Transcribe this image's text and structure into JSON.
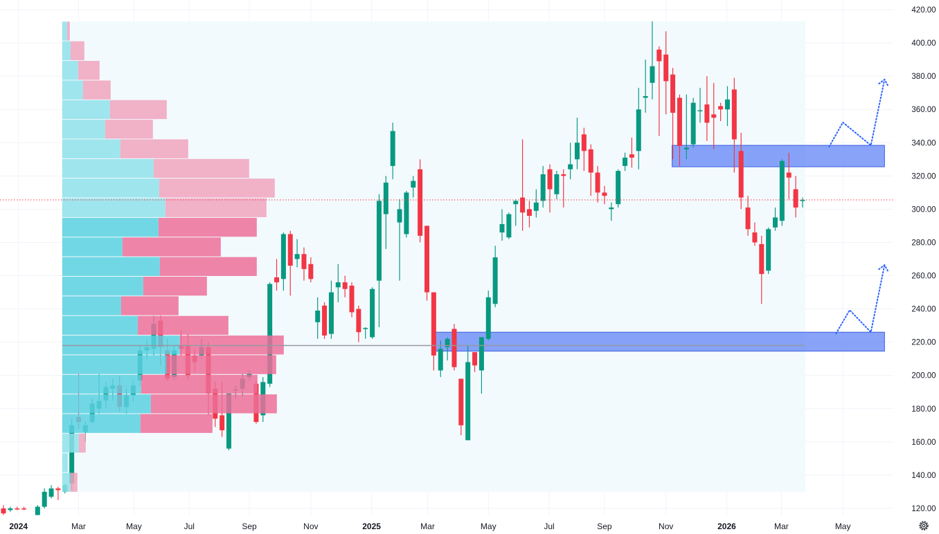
{
  "chart_data": {
    "type": "candlestick",
    "title": "",
    "interval": "weekly",
    "ylim": [
      120,
      420
    ],
    "y_ticks": [
      "420.00",
      "400.00",
      "380.00",
      "360.00",
      "340.00",
      "320.00",
      "300.00",
      "280.00",
      "260.00",
      "240.00",
      "220.00",
      "200.00",
      "180.00",
      "160.00",
      "140.00",
      "120.00"
    ],
    "x_ticks": [
      {
        "label": "2024",
        "week": 0.2,
        "year": true
      },
      {
        "label": "Mar",
        "week": 9.0
      },
      {
        "label": "May",
        "week": 17.1
      },
      {
        "label": "Jul",
        "week": 25.2
      },
      {
        "label": "Sep",
        "week": 34.0
      },
      {
        "label": "Nov",
        "week": 43.0
      },
      {
        "label": "2025",
        "week": 51.9,
        "year": true
      },
      {
        "label": "Mar",
        "week": 60.1
      },
      {
        "label": "May",
        "week": 69.0
      },
      {
        "label": "Jul",
        "week": 77.9
      },
      {
        "label": "Sep",
        "week": 86.0
      },
      {
        "label": "Nov",
        "week": 95.0
      },
      {
        "label": "2026",
        "week": 103.9,
        "year": true
      },
      {
        "label": "Mar",
        "week": 111.9
      },
      {
        "label": "May",
        "week": 120.9
      }
    ],
    "candle_fields": [
      "week",
      "open",
      "high",
      "low",
      "close"
    ],
    "candles": [
      [
        -2,
        120,
        122,
        116,
        117
      ],
      [
        -1,
        119,
        121,
        118,
        120
      ],
      [
        0,
        120,
        121,
        119,
        119.7
      ],
      [
        1,
        120,
        121,
        119,
        119.8
      ],
      [
        3,
        116,
        122,
        116,
        121
      ],
      [
        4,
        121,
        132,
        120,
        130
      ],
      [
        5,
        127,
        134,
        126,
        132
      ],
      [
        6,
        132,
        133,
        125,
        131
      ],
      [
        7,
        130,
        135,
        129,
        134
      ],
      [
        8,
        135,
        174,
        131,
        170
      ],
      [
        9,
        175,
        201,
        168,
        172
      ],
      [
        10,
        166,
        172,
        160,
        170
      ],
      [
        11,
        172,
        186,
        171,
        183
      ],
      [
        12,
        180,
        201,
        177,
        184.5
      ],
      [
        13,
        185,
        196,
        180,
        193
      ],
      [
        14,
        192,
        198,
        185,
        194
      ],
      [
        15,
        194,
        200,
        178,
        181
      ],
      [
        16,
        181,
        192,
        177,
        188
      ],
      [
        17,
        188,
        197,
        184,
        194
      ],
      [
        18,
        197,
        218,
        194,
        215
      ],
      [
        19,
        215,
        222,
        210,
        217
      ],
      [
        20,
        216,
        236,
        212,
        231
      ],
      [
        21,
        233,
        236,
        206,
        217
      ],
      [
        22,
        215,
        222,
        197,
        198
      ],
      [
        23,
        199,
        218,
        197,
        215
      ],
      [
        24,
        218,
        227,
        212,
        216
      ],
      [
        25,
        218,
        225,
        197,
        200
      ],
      [
        26,
        212,
        216,
        202,
        208
      ],
      [
        27,
        212,
        222,
        210,
        217
      ],
      [
        28,
        217,
        220,
        176,
        189
      ],
      [
        29,
        192,
        196,
        169,
        174
      ],
      [
        30,
        176,
        196,
        163,
        167
      ],
      [
        31,
        156,
        189,
        155,
        189
      ],
      [
        32,
        191,
        194,
        186,
        191.5
      ],
      [
        33,
        192,
        201,
        187,
        198
      ],
      [
        34,
        199,
        203,
        197,
        201
      ],
      [
        35,
        195,
        197,
        171,
        172
      ],
      [
        36,
        176,
        199,
        172,
        196
      ],
      [
        37,
        195,
        256,
        193,
        255
      ],
      [
        38,
        259,
        270,
        251,
        256
      ],
      [
        39,
        258,
        286,
        251,
        285
      ],
      [
        40,
        285,
        287,
        248,
        266
      ],
      [
        41,
        270,
        282,
        265,
        273
      ],
      [
        42,
        273,
        277,
        257,
        264
      ],
      [
        43,
        267,
        271,
        256,
        258
      ],
      [
        44,
        232,
        247,
        222,
        239
      ],
      [
        45,
        242,
        244,
        222,
        224
      ],
      [
        46,
        225,
        257,
        222,
        250
      ],
      [
        47,
        253,
        267,
        244,
        256
      ],
      [
        48,
        256,
        260,
        247,
        252
      ],
      [
        49,
        254,
        256,
        235,
        238
      ],
      [
        50,
        240,
        242,
        220,
        226
      ],
      [
        51,
        228,
        229,
        222,
        228.5
      ],
      [
        52,
        223,
        253,
        222,
        252
      ],
      [
        53,
        257,
        309,
        229,
        305
      ],
      [
        54,
        297,
        320,
        276,
        316
      ],
      [
        55,
        326,
        352,
        318,
        347
      ],
      [
        56,
        292,
        306,
        257,
        300
      ],
      [
        57,
        285,
        311,
        283,
        310
      ],
      [
        58,
        313,
        320,
        307,
        317
      ],
      [
        59,
        324,
        330,
        280,
        284
      ],
      [
        60,
        290,
        290,
        245,
        250
      ],
      [
        61,
        250,
        250,
        203,
        212
      ],
      [
        62,
        203,
        221,
        199,
        216
      ],
      [
        63,
        217,
        223,
        209,
        222
      ],
      [
        64,
        228,
        231,
        203,
        205
      ],
      [
        65,
        198,
        198,
        164,
        170
      ],
      [
        66,
        161,
        218,
        161,
        208
      ],
      [
        67,
        214,
        214,
        202,
        206
      ],
      [
        68,
        203,
        223,
        189,
        223
      ],
      [
        69,
        222,
        251,
        221,
        247
      ],
      [
        70,
        243,
        278,
        241,
        271
      ],
      [
        71,
        286,
        300,
        281,
        291
      ],
      [
        72,
        283,
        298,
        282,
        297
      ],
      [
        73,
        303,
        306,
        290,
        305
      ],
      [
        74,
        307,
        342,
        287,
        298
      ],
      [
        75,
        300,
        305,
        289,
        296
      ],
      [
        76,
        299,
        312,
        295,
        304
      ],
      [
        77,
        305,
        326,
        301,
        321
      ],
      [
        78,
        324,
        327,
        298,
        312
      ],
      [
        79,
        309,
        323,
        306,
        321
      ],
      [
        80,
        321,
        324,
        301,
        320
      ],
      [
        81,
        324,
        340,
        318,
        327
      ],
      [
        82,
        330,
        355,
        324,
        340
      ],
      [
        83,
        345,
        349,
        323,
        335
      ],
      [
        84,
        336,
        339,
        308,
        322
      ],
      [
        85,
        322,
        326,
        304,
        310
      ],
      [
        86,
        310,
        314,
        303,
        308
      ],
      [
        87,
        300,
        304,
        293,
        301
      ],
      [
        88,
        303,
        324,
        301,
        323
      ],
      [
        89,
        326,
        334,
        323,
        331
      ],
      [
        90,
        333,
        343,
        325,
        331
      ],
      [
        91,
        335,
        373,
        324,
        360
      ],
      [
        92,
        367,
        390,
        358,
        368
      ],
      [
        93,
        376,
        413,
        366,
        386
      ],
      [
        94,
        396,
        398,
        344,
        389
      ],
      [
        95,
        393,
        407,
        357,
        377
      ],
      [
        96,
        381,
        385,
        330,
        358
      ],
      [
        97,
        367,
        369,
        326,
        338
      ],
      [
        98,
        336,
        369,
        330,
        337
      ],
      [
        99,
        339,
        367,
        337,
        364
      ],
      [
        100,
        359,
        373,
        352,
        359.5
      ],
      [
        101,
        363,
        380,
        341,
        352
      ],
      [
        102,
        357,
        376,
        336,
        355
      ],
      [
        103,
        362,
        364,
        353,
        360
      ],
      [
        104,
        360,
        374,
        350,
        366
      ],
      [
        105,
        372,
        379,
        322,
        342
      ],
      [
        106,
        335,
        346,
        300,
        307
      ],
      [
        107,
        301,
        308,
        284,
        288
      ],
      [
        108,
        286,
        292,
        278,
        280
      ],
      [
        109,
        279,
        284,
        243,
        261
      ],
      [
        110,
        263,
        289,
        261,
        288
      ],
      [
        111,
        289,
        301,
        287,
        295
      ],
      [
        112,
        293,
        330,
        290,
        329
      ],
      [
        113,
        322,
        334,
        306,
        319
      ],
      [
        114,
        312,
        320,
        295,
        301
      ],
      [
        115,
        305,
        307,
        301,
        305.5
      ]
    ],
    "last_price": 305.6,
    "volume_profile": {
      "week_range": [
        6.6,
        115.4
      ],
      "poc_price": 218,
      "value_area": [
        165,
        295
      ],
      "rows_fields": [
        "price_low",
        "price_high",
        "up_volume",
        "down_volume"
      ],
      "rows": [
        [
          401.2,
          413,
          7,
          4
        ],
        [
          389.4,
          401.2,
          12,
          20
        ],
        [
          377.6,
          389.4,
          23,
          31
        ],
        [
          365.8,
          377.6,
          30,
          40
        ],
        [
          354,
          365.8,
          69,
          82
        ],
        [
          342.2,
          354,
          62,
          69
        ],
        [
          330.4,
          342.2,
          84,
          98
        ],
        [
          318.6,
          330.4,
          132,
          138
        ],
        [
          306.8,
          318.6,
          140,
          167
        ],
        [
          295,
          306.8,
          149,
          146
        ],
        [
          283.2,
          295,
          139,
          142
        ],
        [
          271.4,
          283.2,
          87,
          142
        ],
        [
          259.6,
          271.4,
          141,
          140
        ],
        [
          247.8,
          259.6,
          117,
          92
        ],
        [
          236,
          247.8,
          85,
          83
        ],
        [
          224.2,
          236,
          109,
          131
        ],
        [
          212.4,
          224.2,
          170,
          150
        ],
        [
          200.6,
          212.4,
          151,
          158
        ],
        [
          188.8,
          200.6,
          114,
          168
        ],
        [
          177,
          188.8,
          128,
          182
        ],
        [
          165.2,
          177,
          113,
          104
        ],
        [
          153.4,
          165.2,
          24,
          10
        ],
        [
          141.6,
          153.4,
          8,
          0
        ],
        [
          129.8,
          141.6,
          12,
          10
        ]
      ]
    },
    "zones": [
      {
        "week_start": 95.9,
        "week_end": 127,
        "price_low": 325.5,
        "price_high": 338.4
      },
      {
        "week_start": 61.1,
        "week_end": 127,
        "price_low": 214.6,
        "price_high": 226
      }
    ],
    "projections": [
      {
        "points": [
          [
            118.9,
            337.6
          ],
          [
            120.9,
            352.2
          ],
          [
            125.0,
            338.4
          ],
          [
            127.0,
            378
          ]
        ]
      },
      {
        "points": [
          [
            119.9,
            225.2
          ],
          [
            121.9,
            239.3
          ],
          [
            125.0,
            226
          ],
          [
            127.0,
            266.4
          ]
        ]
      }
    ],
    "colors": {
      "up": "#089981",
      "down": "#f23645",
      "vp_up": "#5bd0e0",
      "vp_down": "#ec6f99",
      "vp_up_light": "#8fe0ea",
      "vp_down_light": "#f0a3bd",
      "zone": "#5b7ff5",
      "projection": "#2962ff",
      "last_price": "#f23645"
    }
  },
  "ui": {
    "settings_icon": "gear-icon"
  }
}
